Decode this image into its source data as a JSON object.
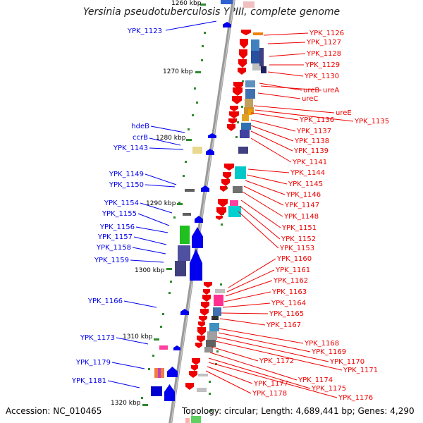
{
  "title": "Yersinia pseudotuberculosis YPIII, complete genome",
  "footer": {
    "accession": "Accession: NC_010465",
    "topology": "Topology: circular; Length: 4,689,441 bp; Genes: 4,290"
  },
  "scale": {
    "tick_top": "1260 kbp",
    "ticks": [
      "1270 kbp",
      "1280 kbp",
      "1290 kbp",
      "1300 kbp",
      "1310 kbp",
      "1320 kbp"
    ]
  },
  "labels_left": [
    "YPK_1123",
    "hdeB",
    "ccrB",
    "YPK_1143",
    "YPK_1149",
    "YPK_1150",
    "YPK_1154",
    "YPK_1155",
    "YPK_1156",
    "YPK_1157",
    "YPK_1158",
    "YPK_1159",
    "YPK_1166",
    "YPK_1173",
    "YPK_1179",
    "YPK_1181"
  ],
  "labels_right": [
    "YPK_1126",
    "YPK_1127",
    "YPK_1128",
    "YPK_1129",
    "YPK_1130",
    "ureB",
    "ureA",
    "ureC",
    "ureE",
    "YPK_1135",
    "YPK_1136",
    "YPK_1137",
    "YPK_1138",
    "YPK_1139",
    "YPK_1141",
    "YPK_1144",
    "YPK_1145",
    "YPK_1146",
    "YPK_1147",
    "YPK_1148",
    "YPK_1151",
    "YPK_1152",
    "YPK_1153",
    "YPK_1160",
    "YPK_1161",
    "YPK_1162",
    "YPK_1163",
    "YPK_1164",
    "YPK_1165",
    "YPK_1167",
    "YPK_1168",
    "YPK_1169",
    "YPK_1170",
    "YPK_1171",
    "YPK_1172",
    "YPK_1174",
    "YPK_1175",
    "YPK_1176",
    "YPK_1177",
    "YPK_1178"
  ],
  "colors": {
    "left_strand": "#0000ee",
    "right_strand": "#ee0000",
    "backbone": "#999999",
    "tick": "#2e8b2e"
  }
}
